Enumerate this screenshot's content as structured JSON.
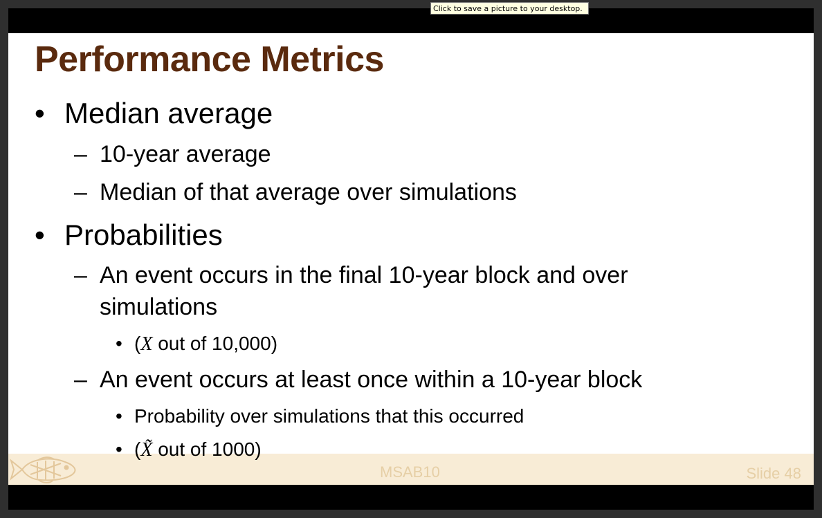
{
  "tooltip": "Click to save a picture to your desktop.",
  "slide": {
    "title": "Performance Metrics",
    "items": [
      {
        "level": 1,
        "marker": "•",
        "text": "Median average"
      },
      {
        "level": 2,
        "marker": "–",
        "text": "10-year average"
      },
      {
        "level": 2,
        "marker": "–",
        "text": "Median of that average over simulations"
      },
      {
        "level": 1,
        "marker": "•",
        "text": "Probabilities"
      },
      {
        "level": 2,
        "marker": "–",
        "text": "An event occurs in the final 10-year block and over"
      },
      {
        "level": 2,
        "marker": "",
        "text": "simulations"
      },
      {
        "level": 3,
        "marker": "•",
        "pre": "(",
        "var": "X",
        "post": " out of 10,000)"
      },
      {
        "level": 2,
        "marker": "–",
        "text": "An event occurs at least once within a 10-year block"
      },
      {
        "level": 3,
        "marker": "•",
        "text": "Probability over simulations that this occurred"
      },
      {
        "level": 3,
        "marker": "•",
        "pre": "(",
        "var": "X̃",
        "post": " out of 1000)"
      }
    ],
    "footer_center": "MSAB10",
    "footer_right": "Slide 48"
  },
  "icons": {
    "logo": "fish-icon"
  },
  "colors": {
    "title": "#5a2a0e",
    "footer_bg": "#f8ecd6",
    "footer_text": "#e6cfa6"
  }
}
